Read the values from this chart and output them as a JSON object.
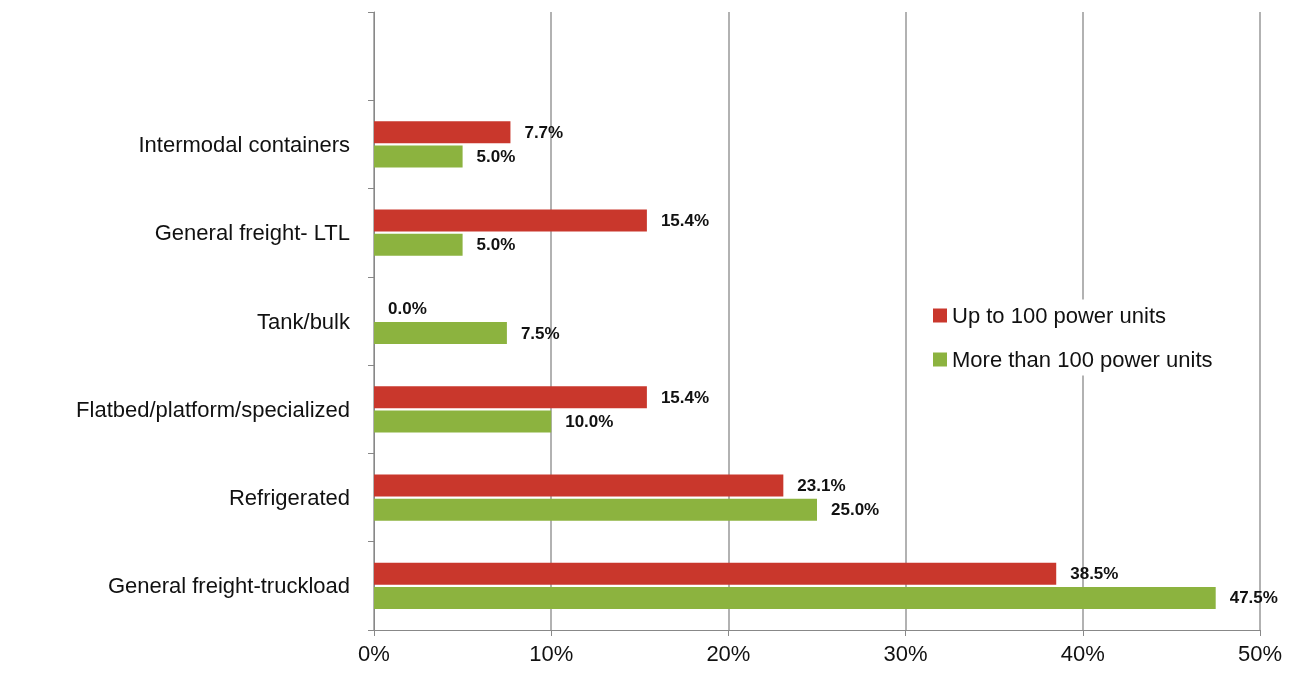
{
  "chart_data": {
    "type": "bar",
    "orientation": "horizontal",
    "categories": [
      null,
      "Intermodal containers",
      "General freight- LTL",
      "Tank/bulk",
      "Flatbed/platform/specialized",
      "Refrigerated",
      "General freight-truckload"
    ],
    "series": [
      {
        "name": "Up to 100 power units",
        "color": "#c9372c",
        "values": [
          null,
          7.7,
          15.4,
          0.0,
          15.4,
          23.1,
          38.5
        ],
        "value_labels": [
          null,
          "7.7%",
          "15.4%",
          "0.0%",
          "15.4%",
          "23.1%",
          "38.5%"
        ]
      },
      {
        "name": "More than 100 power units",
        "color": "#8cb33f",
        "values": [
          null,
          5.0,
          5.0,
          7.5,
          10.0,
          25.0,
          47.5
        ],
        "value_labels": [
          null,
          "5.0%",
          "5.0%",
          "7.5%",
          "10.0%",
          "25.0%",
          "47.5%"
        ]
      }
    ],
    "xlim": [
      0,
      50
    ],
    "xticks": [
      {
        "value": 0,
        "label": "0%"
      },
      {
        "value": 10,
        "label": "10%"
      },
      {
        "value": 20,
        "label": "20%"
      },
      {
        "value": 30,
        "label": "30%"
      },
      {
        "value": 40,
        "label": "40%"
      },
      {
        "value": 50,
        "label": "50%"
      }
    ],
    "grid": "x",
    "legend": "right"
  }
}
